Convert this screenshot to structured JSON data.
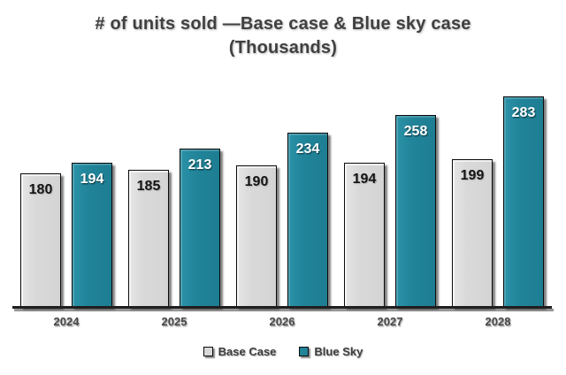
{
  "title": {
    "line1": "# of units sold —Base case & Blue sky case",
    "line2": "(Thousands)"
  },
  "chart_data": {
    "type": "bar",
    "title": "# of units sold —Base case & Blue sky case (Thousands)",
    "categories": [
      "2024",
      "2025",
      "2026",
      "2027",
      "2028"
    ],
    "series": [
      {
        "name": "Base Case",
        "color": "#d9d9d9",
        "label_color": "#141414",
        "values": [
          180,
          185,
          190,
          194,
          199
        ]
      },
      {
        "name": "Blue Sky",
        "color": "#218499",
        "label_color": "#ffffff",
        "values": [
          194,
          213,
          234,
          258,
          283
        ]
      }
    ],
    "xlabel": "",
    "ylabel": "",
    "ylim": [
      0,
      300
    ],
    "grid": false,
    "y_axis_visible": false,
    "data_labels": "inside-end",
    "legend_position": "bottom"
  },
  "colors": {
    "background": "#ffffff",
    "title_text": "#404040",
    "axis_line": "#1f1f1f",
    "axis_label_text": "#474747",
    "legend_text": "#3d3d3d",
    "bar_border": "#0b0b0b"
  }
}
